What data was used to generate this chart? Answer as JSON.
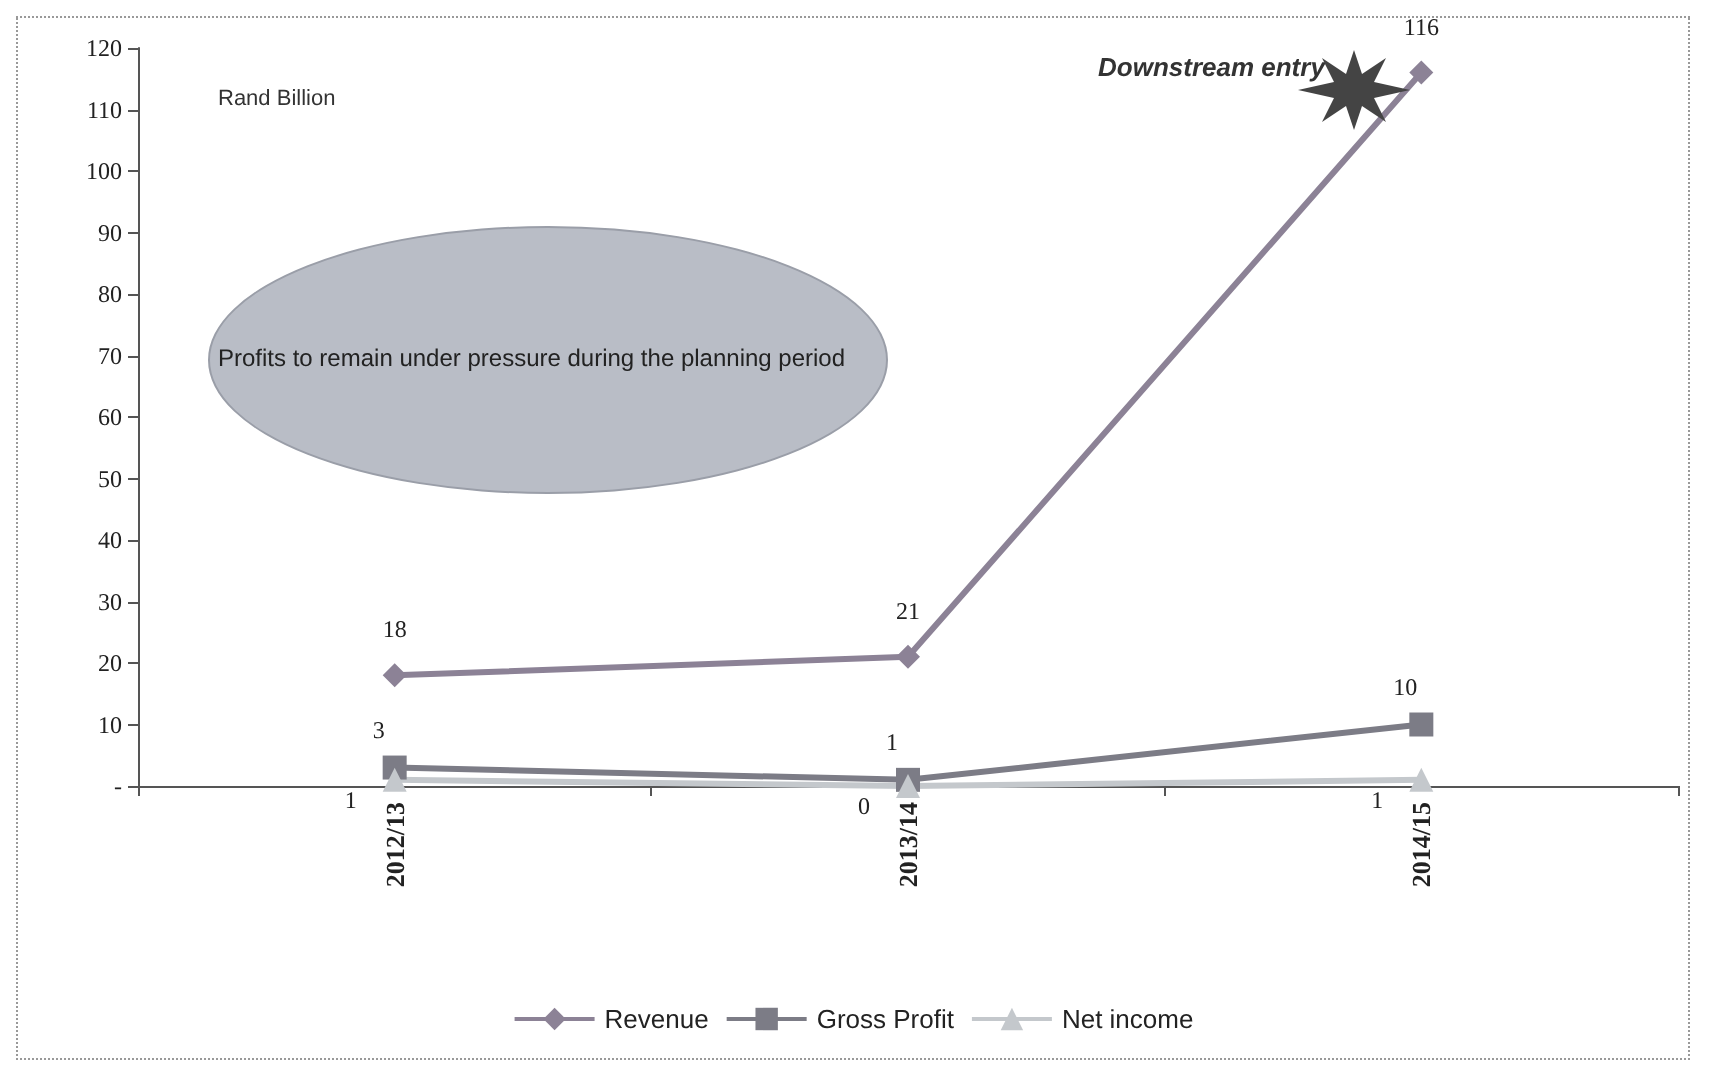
{
  "chart_data": {
    "type": "line",
    "categories": [
      "2012/13",
      "2013/14",
      "2014/15"
    ],
    "series": [
      {
        "name": "Revenue",
        "color": "#8c8296",
        "values": [
          18,
          21,
          116
        ],
        "marker": "diamond"
      },
      {
        "name": "Gross Profit",
        "color": "#7c7c86",
        "values": [
          3,
          1,
          10
        ],
        "marker": "square"
      },
      {
        "name": "Net income",
        "color": "#c4c8cc",
        "values": [
          1,
          0,
          1
        ],
        "marker": "triangle"
      }
    ],
    "ylim": [
      0,
      120
    ],
    "yticks": [
      {
        "value": 0,
        "label": "-"
      },
      10,
      20,
      30,
      40,
      50,
      60,
      70,
      80,
      90,
      100,
      110,
      120
    ],
    "data_labels": true,
    "legend": "bottom",
    "grid": false,
    "annotations": [
      "Rand Billion",
      "Downstream entry",
      "Profits to remain under pressure during the planning period"
    ]
  }
}
